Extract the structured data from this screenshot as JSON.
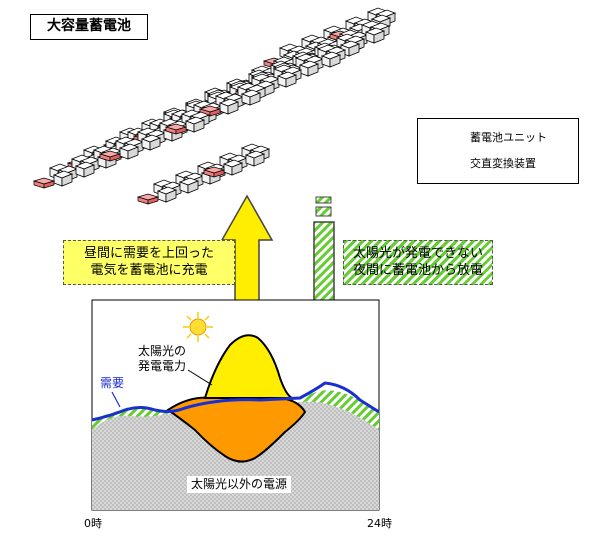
{
  "title": "大容量蓄電池",
  "legend": {
    "battery_unit": "蓄電池ユニット",
    "converter": "交直変換装置"
  },
  "callouts": {
    "charge": [
      "昼間に需要を上回った",
      "電気を蓄電池に充電"
    ],
    "discharge": [
      "太陽光が発電できない",
      "夜間に蓄電池から放電"
    ]
  },
  "labels": {
    "solar": [
      "太陽光の",
      "発電電力"
    ],
    "demand": "需要",
    "other": "太陽光以外の電源",
    "time_start": "0時",
    "time_end": "24時"
  },
  "icons": [
    "sun-icon",
    "battery-unit-icon",
    "converter-icon",
    "up-arrow",
    "down-arrow"
  ],
  "colors": {
    "demand_line": "#1a2fd0",
    "solar": "#ffee00",
    "battery_discharge": "#ff9900",
    "hatch_green": "#66cc33",
    "converter": "#f08080"
  }
}
